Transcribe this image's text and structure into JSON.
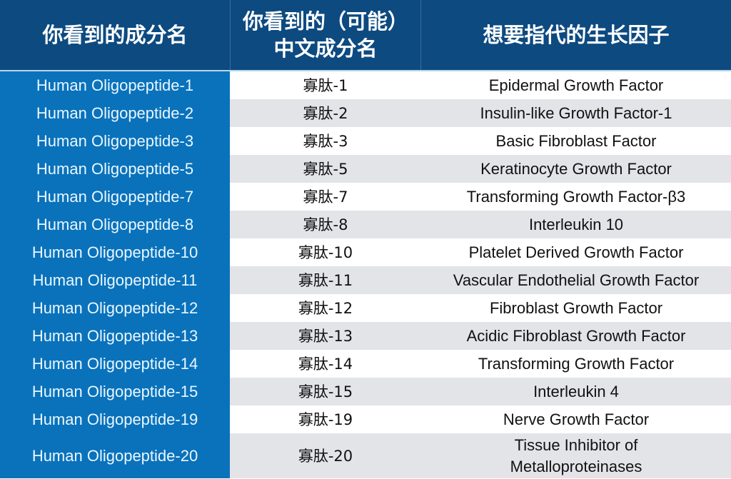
{
  "header": {
    "col1": "你看到的成分名",
    "col2": "你看到的（可能）\n中文成分名",
    "col2_line1": "你看到的（可能）",
    "col2_line2": "中文成分名",
    "col3": "想要指代的生长因子"
  },
  "colors": {
    "header_bg": "#0d4a80",
    "first_col_bg": "#0a72bb",
    "row_alt_bg": "#e3e4e8",
    "row_bg": "#ffffff"
  },
  "rows": [
    {
      "en": "Human Oligopeptide-1",
      "cn": "寡肽-1",
      "gf": "Epidermal Growth Factor"
    },
    {
      "en": "Human Oligopeptide-2",
      "cn": "寡肽-2",
      "gf": "Insulin-like Growth Factor-1"
    },
    {
      "en": "Human Oligopeptide-3",
      "cn": "寡肽-3",
      "gf": "Basic Fibroblast Factor"
    },
    {
      "en": "Human Oligopeptide-5",
      "cn": "寡肽-5",
      "gf": "Keratinocyte Growth Factor"
    },
    {
      "en": "Human Oligopeptide-7",
      "cn": "寡肽-7",
      "gf": "Transforming Growth Factor-β3"
    },
    {
      "en": "Human Oligopeptide-8",
      "cn": "寡肽-8",
      "gf": "Interleukin 10"
    },
    {
      "en": "Human Oligopeptide-10",
      "cn": "寡肽-10",
      "gf": "Platelet Derived Growth Factor"
    },
    {
      "en": "Human Oligopeptide-11",
      "cn": "寡肽-11",
      "gf": "Vascular Endothelial Growth Factor"
    },
    {
      "en": "Human Oligopeptide-12",
      "cn": "寡肽-12",
      "gf": "Fibroblast Growth Factor"
    },
    {
      "en": "Human Oligopeptide-13",
      "cn": "寡肽-13",
      "gf": "Acidic Fibroblast Growth Factor"
    },
    {
      "en": "Human Oligopeptide-14",
      "cn": "寡肽-14",
      "gf": "Transforming Growth Factor"
    },
    {
      "en": "Human Oligopeptide-15",
      "cn": "寡肽-15",
      "gf": "Interleukin 4"
    },
    {
      "en": "Human Oligopeptide-19",
      "cn": "寡肽-19",
      "gf": "Nerve Growth Factor"
    },
    {
      "en": "Human Oligopeptide-20",
      "cn": "寡肽-20",
      "gf": "Tissue Inhibitor of",
      "gf_line2": "Metalloproteinases"
    }
  ]
}
